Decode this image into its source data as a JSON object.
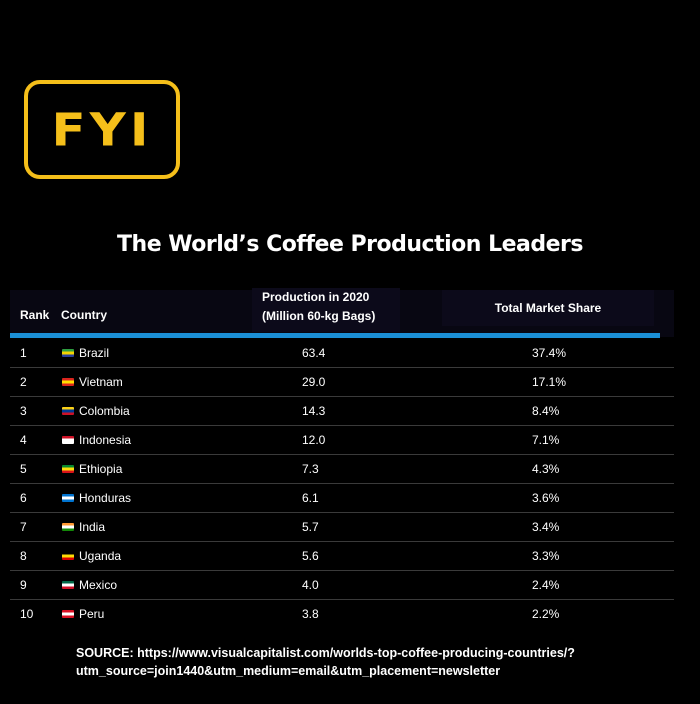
{
  "logo": {
    "text": "FYI"
  },
  "chart_data": {
    "type": "table",
    "title": "The World’s Coffee Production Leaders",
    "columns": {
      "rank": "Rank",
      "country": "Country",
      "production_line1": "Production in 2020",
      "production_line2": "(Million 60-kg Bags)",
      "share": "Total Market Share"
    },
    "rows": [
      {
        "rank": "1",
        "country": "Brazil",
        "production": "63.4",
        "share": "37.4%",
        "flag": [
          "#2e9e3f",
          "#f5d300",
          "#2a3f9b"
        ]
      },
      {
        "rank": "2",
        "country": "Vietnam",
        "production": "29.0",
        "share": "17.1%",
        "flag": [
          "#da251d",
          "#ffde00",
          "#da251d"
        ]
      },
      {
        "rank": "3",
        "country": "Colombia",
        "production": "14.3",
        "share": "8.4%",
        "flag": [
          "#fcd116",
          "#003893",
          "#ce1126"
        ]
      },
      {
        "rank": "4",
        "country": "Indonesia",
        "production": "12.0",
        "share": "7.1%",
        "flag": [
          "#ce1126",
          "#ffffff",
          "#ffffff"
        ]
      },
      {
        "rank": "5",
        "country": "Ethiopia",
        "production": "7.3",
        "share": "4.3%",
        "flag": [
          "#078930",
          "#fcdd09",
          "#da121a"
        ]
      },
      {
        "rank": "6",
        "country": "Honduras",
        "production": "6.1",
        "share": "3.6%",
        "flag": [
          "#0073cf",
          "#ffffff",
          "#0073cf"
        ]
      },
      {
        "rank": "7",
        "country": "India",
        "production": "5.7",
        "share": "3.4%",
        "flag": [
          "#ff9933",
          "#ffffff",
          "#138808"
        ]
      },
      {
        "rank": "8",
        "country": "Uganda",
        "production": "5.6",
        "share": "3.3%",
        "flag": [
          "#000000",
          "#fcdc04",
          "#d90000"
        ]
      },
      {
        "rank": "9",
        "country": "Mexico",
        "production": "4.0",
        "share": "2.4%",
        "flag": [
          "#006847",
          "#ffffff",
          "#ce1126"
        ]
      },
      {
        "rank": "10",
        "country": "Peru",
        "production": "3.8",
        "share": "2.2%",
        "flag": [
          "#d91023",
          "#ffffff",
          "#d91023"
        ]
      }
    ]
  },
  "source": "SOURCE: https://www.visualcapitalist.com/worlds-top-coffee-producing-countries/?utm_source=join1440&utm_medium=email&utm_placement=newsletter",
  "colors": {
    "accent": "#f5bf1a",
    "header_line": "#1b8fd6",
    "background": "#000000"
  }
}
